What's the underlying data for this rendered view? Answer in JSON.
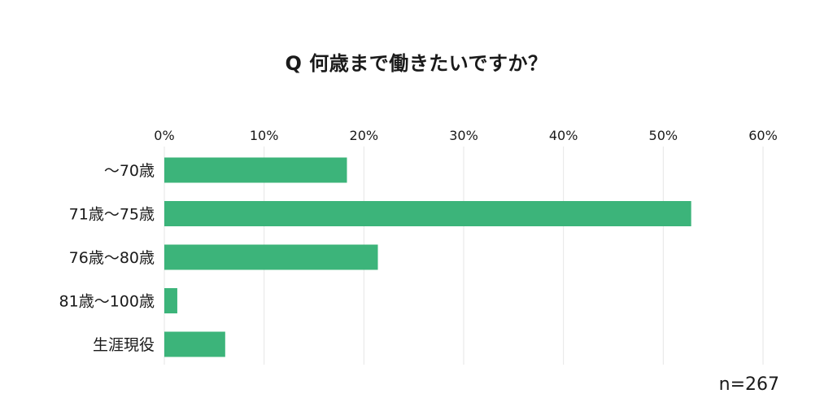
{
  "chart_data": {
    "type": "bar",
    "orientation": "horizontal",
    "title": "Q 何歳まで働きたいですか？",
    "categories": [
      "〜70歳",
      "71歳〜75歳",
      "76歳〜80歳",
      "81歳〜100歳",
      "生涯現役"
    ],
    "values": [
      18.3,
      52.8,
      21.4,
      1.3,
      6.1
    ],
    "unit": "%",
    "xlim": [
      0,
      60
    ],
    "xticks": [
      0,
      10,
      20,
      30,
      40,
      50,
      60
    ],
    "xtick_labels": [
      "0%",
      "10%",
      "20%",
      "30%",
      "40%",
      "50%",
      "60%"
    ],
    "axis_position": "top",
    "grid": true,
    "bar_color": "#3cb47a",
    "grid_color": "#e6e6e6",
    "note": "n=267"
  }
}
